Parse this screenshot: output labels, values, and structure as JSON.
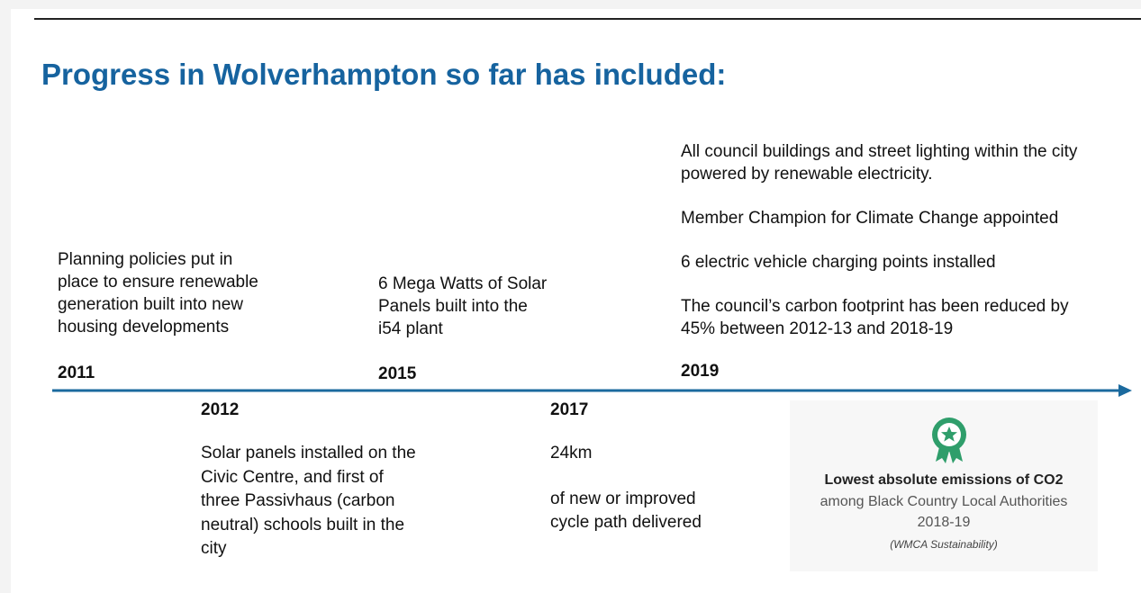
{
  "title": "Progress in Wolverhampton so far has included:",
  "timeline": {
    "above": [
      {
        "year": "2011",
        "paragraphs": [
          [
            "Planning policies put in",
            "place to ensure renewable",
            "generation built into new",
            "housing developments"
          ]
        ]
      },
      {
        "year": "2015",
        "paragraphs": [
          [
            "6 Mega Watts of Solar",
            "Panels built into the",
            "i54 plant"
          ]
        ]
      },
      {
        "year": "2019",
        "paragraphs": [
          [
            "All council buildings and street lighting within the city",
            "powered by renewable electricity."
          ],
          [
            "Member Champion for Climate Change appointed"
          ],
          [
            "6 electric vehicle charging points installed"
          ],
          [
            "The council’s carbon footprint has been reduced by",
            "45% between 2012-13 and 2018-19"
          ]
        ]
      }
    ],
    "below": [
      {
        "year": "2012",
        "paragraphs": [
          [
            "Solar panels installed on the",
            "Civic Centre, and first of",
            "three Passivhaus (carbon",
            "neutral) schools built in the",
            "city"
          ]
        ]
      },
      {
        "year": "2017",
        "paragraphs": [
          [
            "24km"
          ],
          [
            "of new or improved",
            "cycle path delivered"
          ]
        ]
      }
    ]
  },
  "badge": {
    "heading": "Lowest absolute emissions of CO2",
    "lines": [
      "among Black Country Local Authorities",
      "2018-19"
    ],
    "source": "(WMCA Sustainability)"
  }
}
